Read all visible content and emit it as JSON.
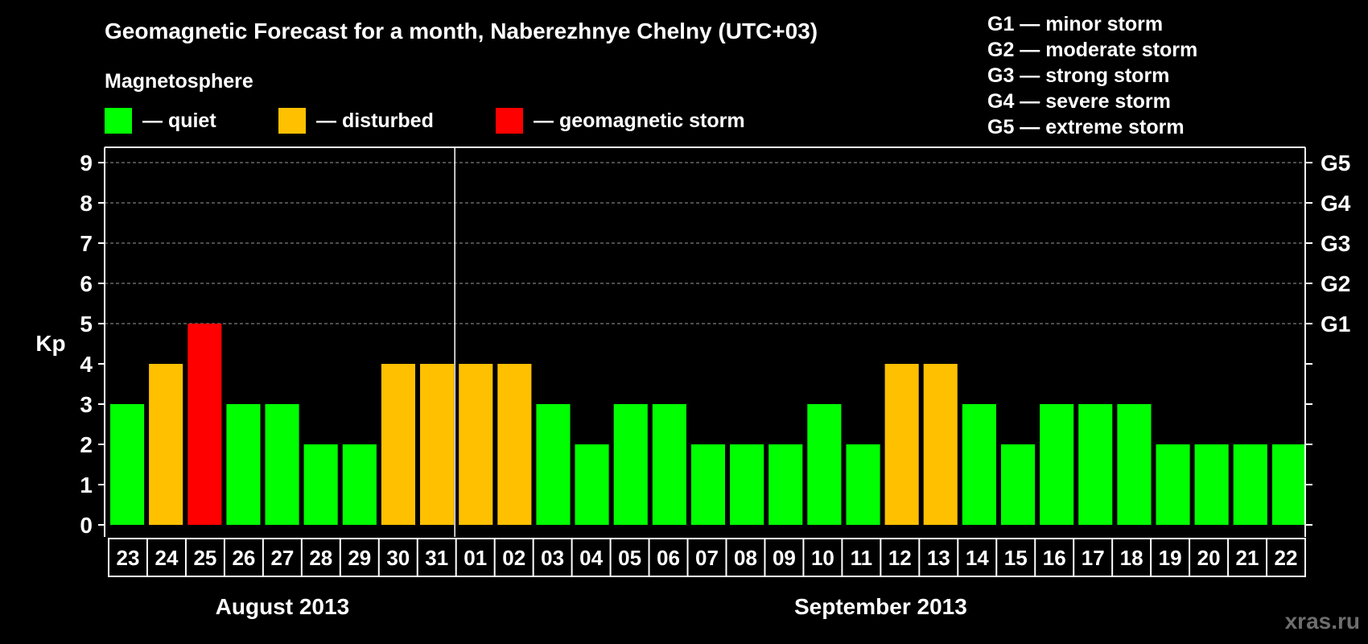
{
  "chart_data": {
    "type": "bar",
    "title": "Geomagnetic Forecast for a month, Naberezhnye Chelny (UTC+03)",
    "ylabel": "Kp",
    "ylim": [
      0,
      9
    ],
    "yticks": [
      0,
      1,
      2,
      3,
      4,
      5,
      6,
      7,
      8,
      9
    ],
    "right_axis_labels": [
      {
        "kp": 5,
        "label": "G1"
      },
      {
        "kp": 6,
        "label": "G2"
      },
      {
        "kp": 7,
        "label": "G3"
      },
      {
        "kp": 8,
        "label": "G4"
      },
      {
        "kp": 9,
        "label": "G5"
      }
    ],
    "storm_scale": [
      {
        "code": "G1",
        "text": "— minor storm"
      },
      {
        "code": "G2",
        "text": "— moderate storm"
      },
      {
        "code": "G3",
        "text": "— strong storm"
      },
      {
        "code": "G4",
        "text": "— severe storm"
      },
      {
        "code": "G5",
        "text": "— extreme storm"
      }
    ],
    "legend": {
      "title": "Magnetosphere",
      "items": [
        {
          "key": "quiet",
          "label": "— quiet",
          "color": "#00ff00"
        },
        {
          "key": "disturbed",
          "label": "— disturbed",
          "color": "#ffc000"
        },
        {
          "key": "storm",
          "label": "— geomagnetic storm",
          "color": "#ff0000"
        }
      ]
    },
    "months": [
      {
        "label": "August 2013",
        "days": 9
      },
      {
        "label": "September 2013",
        "days": 22
      }
    ],
    "categories": [
      "23",
      "24",
      "25",
      "26",
      "27",
      "28",
      "29",
      "30",
      "31",
      "01",
      "02",
      "03",
      "04",
      "05",
      "06",
      "07",
      "08",
      "09",
      "10",
      "11",
      "12",
      "13",
      "14",
      "15",
      "16",
      "17",
      "18",
      "19",
      "20",
      "21",
      "22"
    ],
    "values": [
      3,
      4,
      5,
      3,
      3,
      2,
      2,
      4,
      4,
      4,
      4,
      3,
      2,
      3,
      3,
      2,
      2,
      2,
      3,
      2,
      4,
      4,
      3,
      2,
      3,
      3,
      3,
      2,
      2,
      2,
      2
    ],
    "status": [
      "quiet",
      "disturbed",
      "storm",
      "quiet",
      "quiet",
      "quiet",
      "quiet",
      "disturbed",
      "disturbed",
      "disturbed",
      "disturbed",
      "quiet",
      "quiet",
      "quiet",
      "quiet",
      "quiet",
      "quiet",
      "quiet",
      "quiet",
      "quiet",
      "disturbed",
      "disturbed",
      "quiet",
      "quiet",
      "quiet",
      "quiet",
      "quiet",
      "quiet",
      "quiet",
      "quiet",
      "quiet"
    ],
    "grid": true
  },
  "watermark": "xras.ru"
}
